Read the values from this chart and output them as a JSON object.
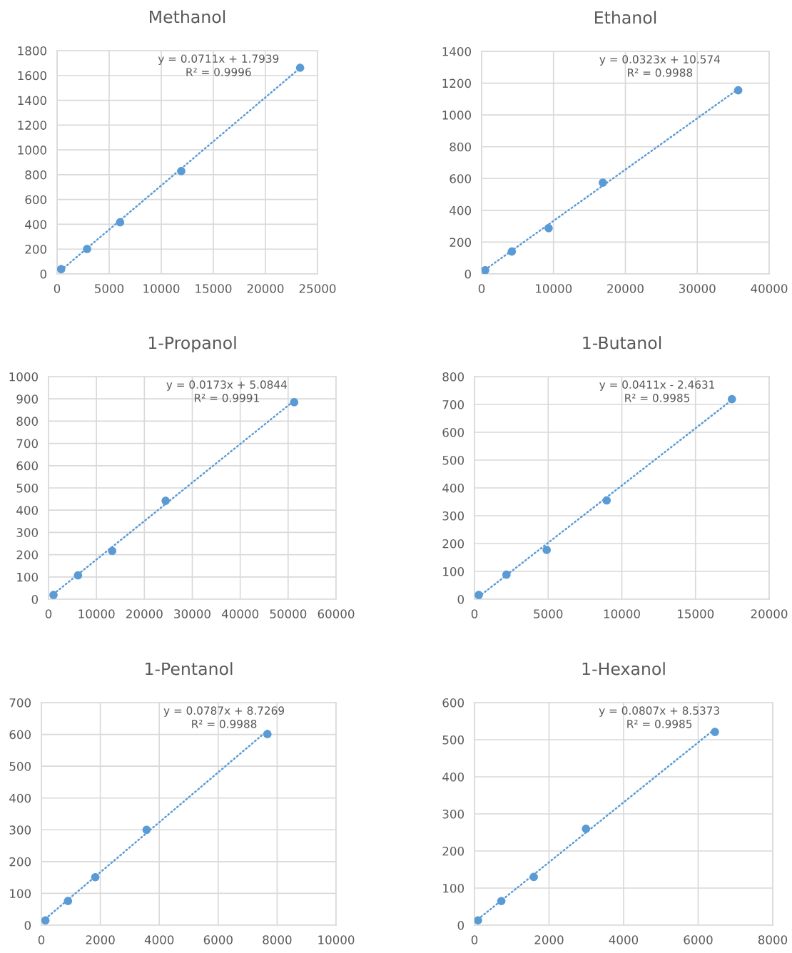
{
  "chart_data": [
    {
      "type": "scatter",
      "title": "Methanol",
      "xlim": [
        0,
        25000
      ],
      "xticks": [
        0,
        5000,
        10000,
        15000,
        20000,
        25000
      ],
      "ylim": [
        0,
        1800
      ],
      "yticks": [
        0,
        200,
        400,
        600,
        800,
        1000,
        1200,
        1400,
        1600,
        1800
      ],
      "grid": true,
      "series": [
        {
          "type": "scatter",
          "marker": "circle",
          "color": "#5b9bd5",
          "x": [
            390,
            2880,
            6050,
            11920,
            23330
          ],
          "values": [
            38,
            201,
            416,
            829,
            1662
          ]
        },
        {
          "type": "line",
          "color": "#5b9bd5",
          "line_style": "dotted",
          "x": [
            390,
            23330
          ],
          "values": [
            30,
            1660
          ]
        }
      ],
      "annotations": [
        "y = 0.0711x + 1.7939",
        "R² = 0.9996"
      ]
    },
    {
      "type": "scatter",
      "title": "Ethanol",
      "xlim": [
        0,
        40000
      ],
      "xticks": [
        0,
        10000,
        20000,
        30000,
        40000
      ],
      "ylim": [
        0,
        1400
      ],
      "yticks": [
        0,
        200,
        400,
        600,
        800,
        1000,
        1200,
        1400
      ],
      "grid": true,
      "series": [
        {
          "type": "scatter",
          "marker": "circle",
          "color": "#5b9bd5",
          "x": [
            500,
            4200,
            9320,
            16860,
            35700
          ],
          "values": [
            23,
            141,
            288,
            574,
            1155
          ]
        },
        {
          "type": "line",
          "color": "#5b9bd5",
          "line_style": "dotted",
          "x": [
            500,
            35700
          ],
          "values": [
            27,
            1163
          ]
        }
      ],
      "annotations": [
        "y = 0.0323x + 10.574",
        "R² = 0.9988"
      ]
    },
    {
      "type": "scatter",
      "title": "1-Propanol",
      "xlim": [
        0,
        60000
      ],
      "xticks": [
        0,
        10000,
        20000,
        30000,
        40000,
        50000,
        60000
      ],
      "ylim": [
        0,
        1000
      ],
      "yticks": [
        0,
        100,
        200,
        300,
        400,
        500,
        600,
        700,
        800,
        900,
        1000
      ],
      "grid": true,
      "series": [
        {
          "type": "scatter",
          "marker": "circle",
          "color": "#5b9bd5",
          "x": [
            1040,
            6150,
            13290,
            24440,
            51260
          ],
          "values": [
            19,
            107,
            217,
            442,
            885
          ]
        },
        {
          "type": "line",
          "color": "#5b9bd5",
          "line_style": "dotted",
          "x": [
            1040,
            51260
          ],
          "values": [
            23,
            892
          ]
        }
      ],
      "annotations": [
        "y = 0.0173x + 5.0844",
        "R² = 0.9991"
      ]
    },
    {
      "type": "scatter",
      "title": "1-Butanol",
      "xlim": [
        0,
        20000
      ],
      "xticks": [
        0,
        5000,
        10000,
        15000,
        20000
      ],
      "ylim": [
        0,
        800
      ],
      "yticks": [
        0,
        100,
        200,
        300,
        400,
        500,
        600,
        700,
        800
      ],
      "grid": true,
      "series": [
        {
          "type": "scatter",
          "marker": "circle",
          "color": "#5b9bd5",
          "x": [
            290,
            2170,
            4900,
            8970,
            17470
          ],
          "values": [
            15,
            88,
            177,
            355,
            719
          ]
        },
        {
          "type": "line",
          "color": "#5b9bd5",
          "line_style": "dotted",
          "x": [
            290,
            17470
          ],
          "values": [
            9,
            716
          ]
        }
      ],
      "annotations": [
        "y = 0.0411x - 2.4631",
        "R² = 0.9985"
      ]
    },
    {
      "type": "scatter",
      "title": "1-Pentanol",
      "xlim": [
        0,
        10000
      ],
      "xticks": [
        0,
        2000,
        4000,
        6000,
        8000,
        10000
      ],
      "ylim": [
        0,
        700
      ],
      "yticks": [
        0,
        100,
        200,
        300,
        400,
        500,
        600,
        700
      ],
      "grid": true,
      "series": [
        {
          "type": "scatter",
          "marker": "circle",
          "color": "#5b9bd5",
          "x": [
            137,
            903,
            1830,
            3570,
            7670
          ],
          "values": [
            15,
            76,
            151,
            300,
            601
          ]
        },
        {
          "type": "line",
          "color": "#5b9bd5",
          "line_style": "dotted",
          "x": [
            137,
            7670
          ],
          "values": [
            20,
            612
          ]
        }
      ],
      "annotations": [
        "y = 0.0787x + 8.7269",
        "R² = 0.9988"
      ]
    },
    {
      "type": "scatter",
      "title": "1-Hexanol",
      "xlim": [
        0,
        8000
      ],
      "xticks": [
        0,
        2000,
        4000,
        6000,
        8000
      ],
      "ylim": [
        0,
        600
      ],
      "yticks": [
        0,
        100,
        200,
        300,
        400,
        500,
        600
      ],
      "grid": true,
      "series": [
        {
          "type": "scatter",
          "marker": "circle",
          "color": "#5b9bd5",
          "x": [
            95,
            720,
            1590,
            2990,
            6450
          ],
          "values": [
            13,
            65,
            130,
            260,
            521
          ]
        },
        {
          "type": "line",
          "color": "#5b9bd5",
          "line_style": "dotted",
          "x": [
            95,
            6450
          ],
          "values": [
            16,
            529
          ]
        }
      ],
      "annotations": [
        "y = 0.0807x + 8.5373",
        "R² = 0.9985"
      ]
    }
  ]
}
